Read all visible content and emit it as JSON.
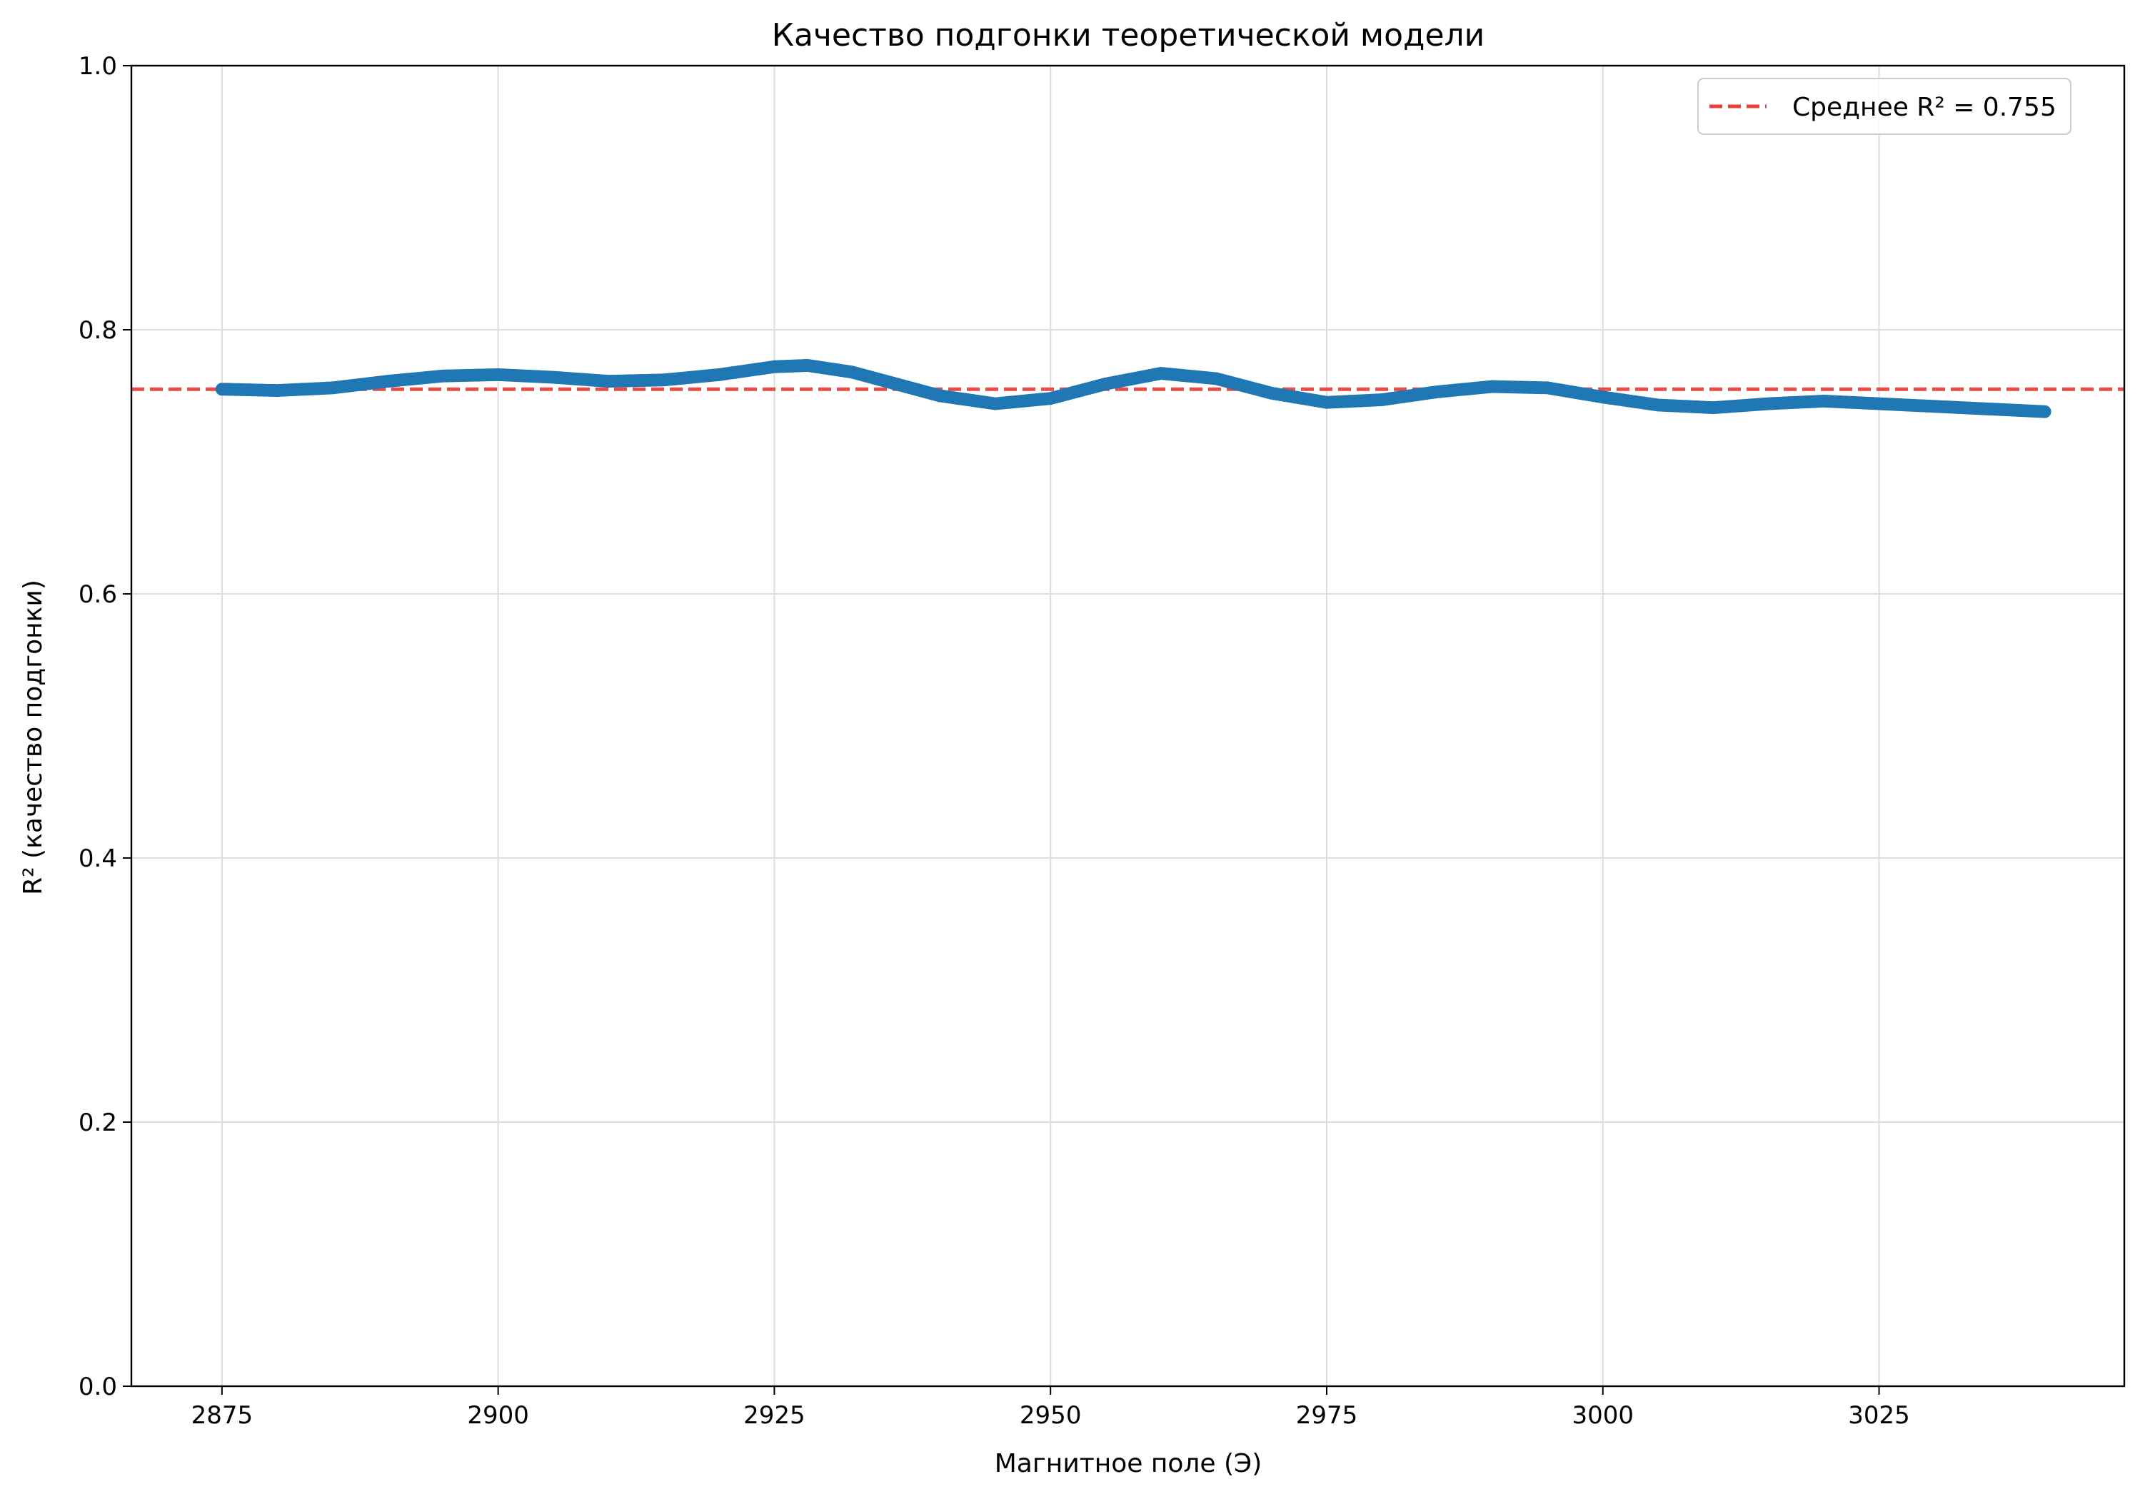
{
  "chart_data": {
    "type": "scatter",
    "title": "Качество подгонки теоретической модели",
    "xlabel": "Магнитное поле (Э)",
    "ylabel": "R² (качество подгонки)",
    "xlim": [
      2866.8,
      3047.2
    ],
    "ylim": [
      0,
      1
    ],
    "xticks": [
      2875,
      2900,
      2925,
      2950,
      2975,
      3000,
      3025
    ],
    "yticks": [
      0.0,
      0.2,
      0.4,
      0.6,
      0.8,
      1.0
    ],
    "xtick_labels": [
      "2875",
      "2900",
      "2925",
      "2950",
      "2975",
      "3000",
      "3025"
    ],
    "ytick_labels": [
      "0.0",
      "0.2",
      "0.4",
      "0.6",
      "0.8",
      "1.0"
    ],
    "grid": true,
    "legend_position": "top-right",
    "series": [
      {
        "color": "#1f77b4",
        "x": [
          2875,
          2880,
          2885,
          2890,
          2895,
          2900,
          2905,
          2910,
          2915,
          2920,
          2925,
          2928,
          2932,
          2936,
          2940,
          2945,
          2950,
          2955,
          2960,
          2965,
          2970,
          2975,
          2980,
          2985,
          2990,
          2995,
          3000,
          3005,
          3010,
          3015,
          3020,
          3025,
          3030,
          3035,
          3040
        ],
        "y": [
          0.755,
          0.754,
          0.756,
          0.761,
          0.765,
          0.766,
          0.764,
          0.761,
          0.762,
          0.766,
          0.772,
          0.773,
          0.768,
          0.759,
          0.75,
          0.744,
          0.748,
          0.759,
          0.767,
          0.763,
          0.752,
          0.745,
          0.747,
          0.753,
          0.757,
          0.756,
          0.749,
          0.743,
          0.741,
          0.744,
          0.746,
          0.744,
          0.742,
          0.74,
          0.738
        ]
      }
    ],
    "reference_line": {
      "label": "Среднее R² = 0.755",
      "y": 0.755,
      "color": "#e8413d",
      "style": "dashed"
    }
  }
}
